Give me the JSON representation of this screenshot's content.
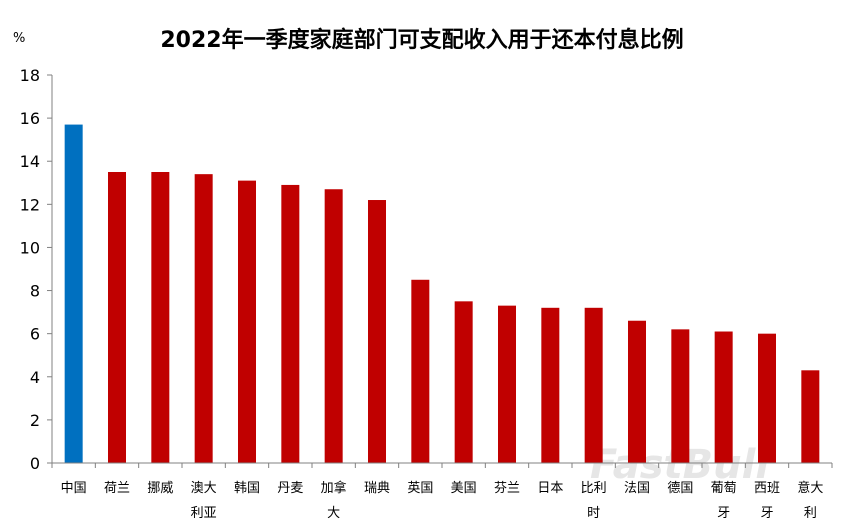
{
  "chart_data": {
    "type": "bar",
    "title": "2022年一季度家庭部门可支配收入用于还本付息比例",
    "unit_label": "%",
    "categories": [
      "中国",
      "荷兰",
      "挪威",
      "澳大利亚",
      "韩国",
      "丹麦",
      "加拿大",
      "瑞典",
      "英国",
      "美国",
      "芬兰",
      "日本",
      "比利时",
      "法国",
      "德国",
      "葡萄牙",
      "西班牙",
      "意大利"
    ],
    "category_lines": [
      [
        "中国"
      ],
      [
        "荷兰"
      ],
      [
        "挪威"
      ],
      [
        "澳大",
        "利亚"
      ],
      [
        "韩国"
      ],
      [
        "丹麦"
      ],
      [
        "加拿",
        "大"
      ],
      [
        "瑞典"
      ],
      [
        "英国"
      ],
      [
        "美国"
      ],
      [
        "芬兰"
      ],
      [
        "日本"
      ],
      [
        "比利",
        "时"
      ],
      [
        "法国"
      ],
      [
        "德国"
      ],
      [
        "葡萄",
        "牙"
      ],
      [
        "西班",
        "牙"
      ],
      [
        "意大",
        "利"
      ]
    ],
    "values": [
      15.7,
      13.5,
      13.5,
      13.4,
      13.1,
      12.9,
      12.7,
      12.2,
      8.5,
      7.5,
      7.3,
      7.2,
      7.2,
      6.6,
      6.2,
      6.1,
      6.0,
      4.3
    ],
    "highlight_index": 0,
    "colors": {
      "highlight": "#0070c0",
      "default": "#c00000",
      "axis": "#808080"
    },
    "ylim": [
      0,
      18
    ],
    "yticks": [
      0,
      2,
      4,
      6,
      8,
      10,
      12,
      14,
      16,
      18
    ],
    "xlabel": "",
    "ylabel": "",
    "grid": false,
    "legend": "none"
  },
  "watermark": "FastBull"
}
